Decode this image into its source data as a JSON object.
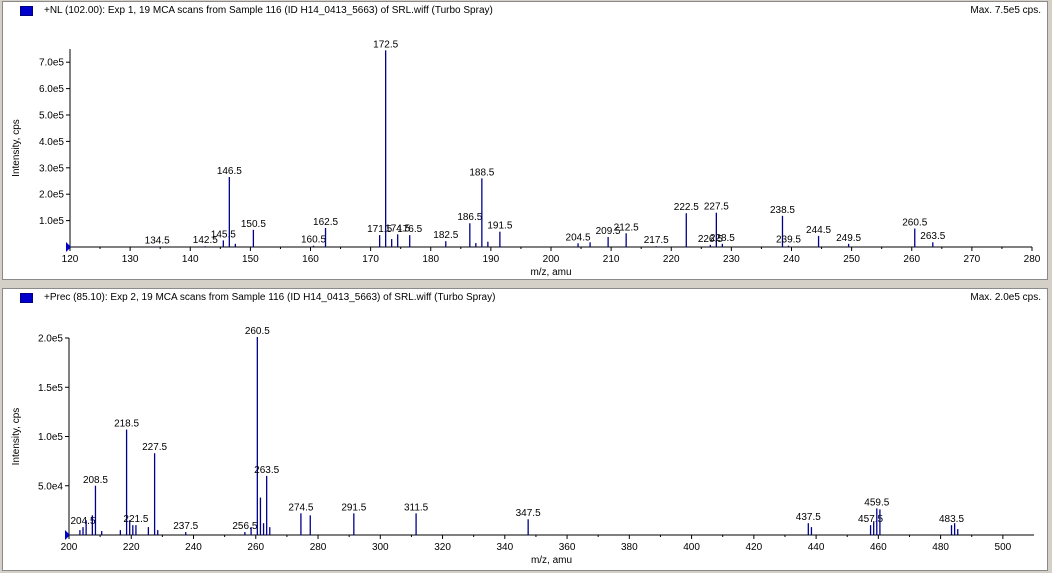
{
  "colors": {
    "peak": "#00008b",
    "axis": "#000000",
    "marker": "#0000cc",
    "background": "#ffffff"
  },
  "chart_data": [
    {
      "type": "bar",
      "title": "+NL (102.00): Exp 1, 19 MCA scans from Sample 116 (ID H14_0413_5663) of SRL.wiff (Turbo Spray)",
      "max_label": "Max. 7.5e5 cps.",
      "xlabel": "m/z, amu",
      "ylabel": "Intensity, cps",
      "xlim": [
        120,
        280
      ],
      "ylim": [
        0,
        750000
      ],
      "x_ticks": [
        120,
        130,
        140,
        150,
        160,
        170,
        180,
        190,
        200,
        210,
        220,
        230,
        240,
        250,
        260,
        270,
        280
      ],
      "y_ticks": [
        {
          "value": 100000,
          "label": "1.0e5"
        },
        {
          "value": 200000,
          "label": "2.0e5"
        },
        {
          "value": 300000,
          "label": "3.0e5"
        },
        {
          "value": 400000,
          "label": "4.0e5"
        },
        {
          "value": 500000,
          "label": "5.0e5"
        },
        {
          "value": 600000,
          "label": "6.0e5"
        },
        {
          "value": 700000,
          "label": "7.0e5"
        }
      ],
      "peaks": [
        {
          "x": 134.5,
          "y": 2000,
          "label": "134.5"
        },
        {
          "x": 142.5,
          "y": 3000,
          "label": "142.5"
        },
        {
          "x": 145.5,
          "y": 25000,
          "label": "145.5"
        },
        {
          "x": 146.5,
          "y": 265000,
          "label": "146.5"
        },
        {
          "x": 147.5,
          "y": 12000
        },
        {
          "x": 150.5,
          "y": 65000,
          "label": "150.5"
        },
        {
          "x": 160.5,
          "y": 5000,
          "label": "160.5"
        },
        {
          "x": 162.5,
          "y": 72000,
          "label": "162.5"
        },
        {
          "x": 171.5,
          "y": 45000,
          "label": "171.5"
        },
        {
          "x": 172.5,
          "y": 745000,
          "label": "172.5"
        },
        {
          "x": 173.5,
          "y": 30000
        },
        {
          "x": 174.5,
          "y": 48000,
          "label": "174.5"
        },
        {
          "x": 176.5,
          "y": 45000,
          "label": "176.5"
        },
        {
          "x": 182.5,
          "y": 22000,
          "label": "182.5"
        },
        {
          "x": 186.5,
          "y": 90000,
          "label": "186.5"
        },
        {
          "x": 187.5,
          "y": 15000
        },
        {
          "x": 188.5,
          "y": 260000,
          "label": "188.5"
        },
        {
          "x": 189.5,
          "y": 20000
        },
        {
          "x": 191.5,
          "y": 58000,
          "label": "191.5"
        },
        {
          "x": 204.5,
          "y": 14000,
          "label": "204.5"
        },
        {
          "x": 206.5,
          "y": 18000
        },
        {
          "x": 209.5,
          "y": 38000,
          "label": "209.5"
        },
        {
          "x": 212.5,
          "y": 52000,
          "label": "212.5"
        },
        {
          "x": 217.5,
          "y": 3000,
          "label": "217.5"
        },
        {
          "x": 222.5,
          "y": 128000,
          "label": "222.5"
        },
        {
          "x": 226.5,
          "y": 8000,
          "label": "226.5"
        },
        {
          "x": 227.5,
          "y": 130000,
          "label": "227.5"
        },
        {
          "x": 228.5,
          "y": 12000,
          "label": "228.5"
        },
        {
          "x": 238.5,
          "y": 118000,
          "label": "238.5"
        },
        {
          "x": 239.5,
          "y": 5000,
          "label": "239.5"
        },
        {
          "x": 244.5,
          "y": 42000,
          "label": "244.5"
        },
        {
          "x": 249.5,
          "y": 12000,
          "label": "249.5"
        },
        {
          "x": 260.5,
          "y": 70000,
          "label": "260.5"
        },
        {
          "x": 263.5,
          "y": 18000,
          "label": "263.5"
        }
      ]
    },
    {
      "type": "bar",
      "title": "+Prec (85.10): Exp 2, 19 MCA scans from Sample 116 (ID H14_0413_5663) of SRL.wiff (Turbo Spray)",
      "max_label": "Max. 2.0e5 cps.",
      "xlabel": "m/z, amu",
      "ylabel": "Intensity, cps",
      "xlim": [
        200,
        510
      ],
      "ylim": [
        0,
        200000
      ],
      "x_ticks": [
        200,
        220,
        240,
        260,
        280,
        300,
        320,
        340,
        360,
        380,
        400,
        420,
        440,
        460,
        480,
        500
      ],
      "y_ticks": [
        {
          "value": 50000,
          "label": "5.0e4"
        },
        {
          "value": 100000,
          "label": "1.0e5"
        },
        {
          "value": 150000,
          "label": "1.5e5"
        },
        {
          "value": 200000,
          "label": "2.0e5"
        }
      ],
      "peaks": [
        {
          "x": 203.5,
          "y": 5000
        },
        {
          "x": 204.5,
          "y": 8000,
          "label": "204.5"
        },
        {
          "x": 205.5,
          "y": 15000
        },
        {
          "x": 207.5,
          "y": 20000
        },
        {
          "x": 208.5,
          "y": 50000,
          "label": "208.5"
        },
        {
          "x": 210.5,
          "y": 4000
        },
        {
          "x": 216.5,
          "y": 5000
        },
        {
          "x": 218.5,
          "y": 107000,
          "label": "218.5"
        },
        {
          "x": 219.5,
          "y": 15000
        },
        {
          "x": 220.5,
          "y": 10000
        },
        {
          "x": 221.5,
          "y": 10000,
          "label": "221.5"
        },
        {
          "x": 225.5,
          "y": 8000
        },
        {
          "x": 227.5,
          "y": 83000,
          "label": "227.5"
        },
        {
          "x": 228.5,
          "y": 5000
        },
        {
          "x": 237.5,
          "y": 3000,
          "label": "237.5"
        },
        {
          "x": 256.5,
          "y": 3000,
          "label": "256.5"
        },
        {
          "x": 258.5,
          "y": 8000
        },
        {
          "x": 260.5,
          "y": 201000,
          "label": "260.5"
        },
        {
          "x": 261.5,
          "y": 38000
        },
        {
          "x": 262.5,
          "y": 12000
        },
        {
          "x": 263.5,
          "y": 60000,
          "label": "263.5"
        },
        {
          "x": 264.5,
          "y": 8000
        },
        {
          "x": 274.5,
          "y": 22000,
          "label": "274.5"
        },
        {
          "x": 277.5,
          "y": 20000
        },
        {
          "x": 291.5,
          "y": 22000,
          "label": "291.5"
        },
        {
          "x": 311.5,
          "y": 22000,
          "label": "311.5"
        },
        {
          "x": 347.5,
          "y": 16000,
          "label": "347.5"
        },
        {
          "x": 437.5,
          "y": 12000,
          "label": "437.5"
        },
        {
          "x": 438.5,
          "y": 8000
        },
        {
          "x": 457.5,
          "y": 10000,
          "label": "457.5"
        },
        {
          "x": 458.5,
          "y": 14000
        },
        {
          "x": 459.5,
          "y": 27000,
          "label": "459.5"
        },
        {
          "x": 460.5,
          "y": 26000
        },
        {
          "x": 483.5,
          "y": 10000,
          "label": "483.5"
        },
        {
          "x": 484.5,
          "y": 12000
        },
        {
          "x": 485.5,
          "y": 6000
        }
      ]
    }
  ]
}
